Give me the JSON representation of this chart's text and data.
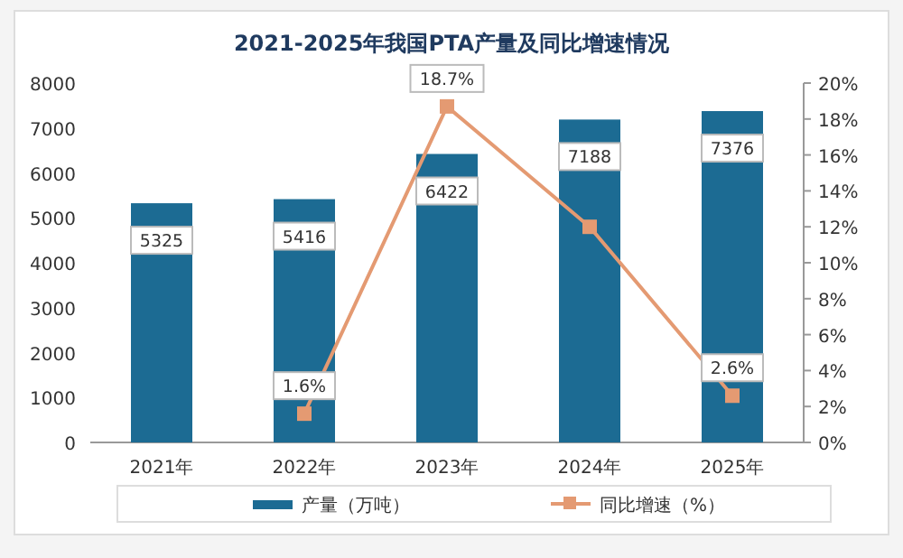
{
  "chart_data": {
    "type": "bar",
    "title": "2021-2025年我国PTA产量及同比增速情况",
    "categories": [
      "2021年",
      "2022年",
      "2023年",
      "2024年",
      "2025年"
    ],
    "series": [
      {
        "name": "产量（万吨）",
        "color": "#1c6b93",
        "values": [
          5325,
          5416,
          6422,
          7188,
          7376
        ],
        "value_labels": [
          "5325",
          "5416",
          "6422",
          "7188",
          "7376"
        ]
      },
      {
        "name": "同比增速（%）",
        "type": "line",
        "axis": "y2",
        "color": "#e49a72",
        "marker": "square",
        "values": [
          null,
          1.6,
          18.7,
          12.0,
          2.6
        ],
        "value_labels": [
          null,
          "1.6%",
          "18.7%",
          null,
          "2.6%"
        ]
      }
    ],
    "ylim": [
      0,
      8000
    ],
    "yticks": [
      0,
      1000,
      2000,
      3000,
      4000,
      5000,
      6000,
      7000,
      8000
    ],
    "y2lim": [
      0,
      20
    ],
    "y2ticks": [
      {
        "value": 0,
        "label": "0%"
      },
      {
        "value": 2,
        "label": "2%"
      },
      {
        "value": 4,
        "label": "4%"
      },
      {
        "value": 6,
        "label": "6%"
      },
      {
        "value": 8,
        "label": "8%"
      },
      {
        "value": 10,
        "label": "10%"
      },
      {
        "value": 12,
        "label": "12%"
      },
      {
        "value": 14,
        "label": "14%"
      },
      {
        "value": 16,
        "label": "16%"
      },
      {
        "value": 18,
        "label": "18%"
      },
      {
        "value": 20,
        "label": "20%"
      }
    ],
    "legend": "bottom"
  }
}
